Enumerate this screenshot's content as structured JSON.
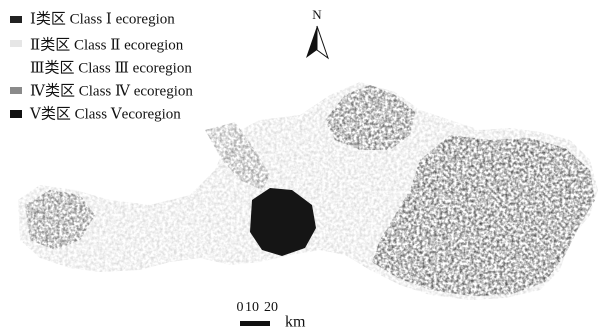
{
  "legend": {
    "items": [
      "Ⅰ类区 Class Ⅰ ecoregion",
      "Ⅱ类区 Class Ⅱ ecoregion",
      "Ⅲ类区 Class Ⅲ ecoregion",
      "Ⅳ类区 Class Ⅳ ecoregion",
      "Ⅴ类区 Class Ⅴecoregion"
    ]
  },
  "north_arrow": {
    "label": "N"
  },
  "scale_bar": {
    "labels": [
      0,
      10,
      20
    ],
    "unit": "km"
  }
}
